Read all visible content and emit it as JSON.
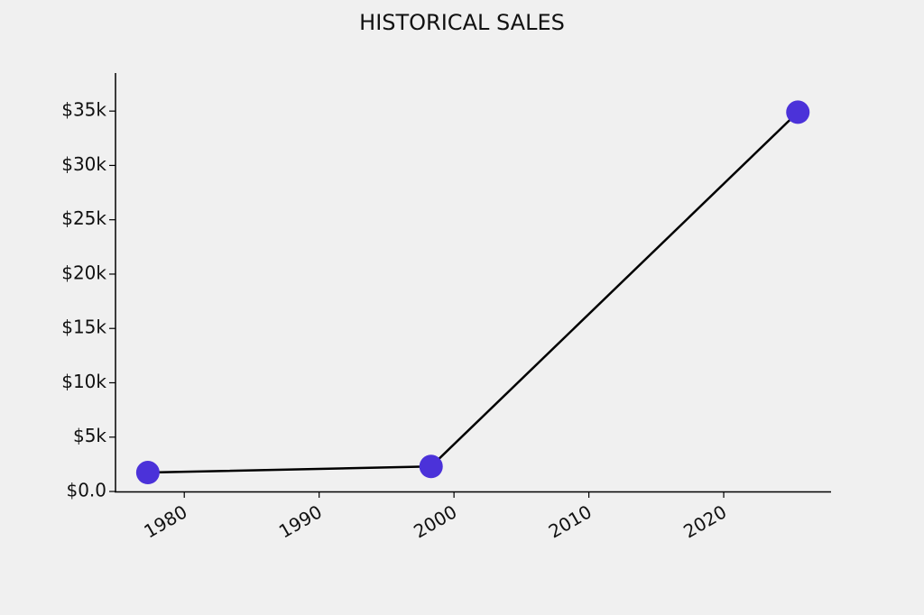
{
  "chart_data": {
    "type": "line",
    "title": "HISTORICAL SALES",
    "x": [
      1977.3,
      1998.3,
      2025.5
    ],
    "series": [
      {
        "values": [
          1740,
          2300,
          34900
        ],
        "color": "#4b32d9",
        "line_color": "#000000"
      }
    ],
    "xlim": [
      1974.9,
      2027.96
    ],
    "xticks": [
      1980,
      1990,
      2000,
      2010,
      2020
    ],
    "ylim": [
      0,
      38500
    ],
    "yticks": [
      {
        "value": 0,
        "label": "$0.0"
      },
      {
        "value": 5000,
        "label": "$5k"
      },
      {
        "value": 10000,
        "label": "$10k"
      },
      {
        "value": 15000,
        "label": "$15k"
      },
      {
        "value": 20000,
        "label": "$20k"
      },
      {
        "value": 25000,
        "label": "$25k"
      },
      {
        "value": 30000,
        "label": "$30k"
      },
      {
        "value": 35000,
        "label": "$35k"
      }
    ],
    "grid": false
  }
}
